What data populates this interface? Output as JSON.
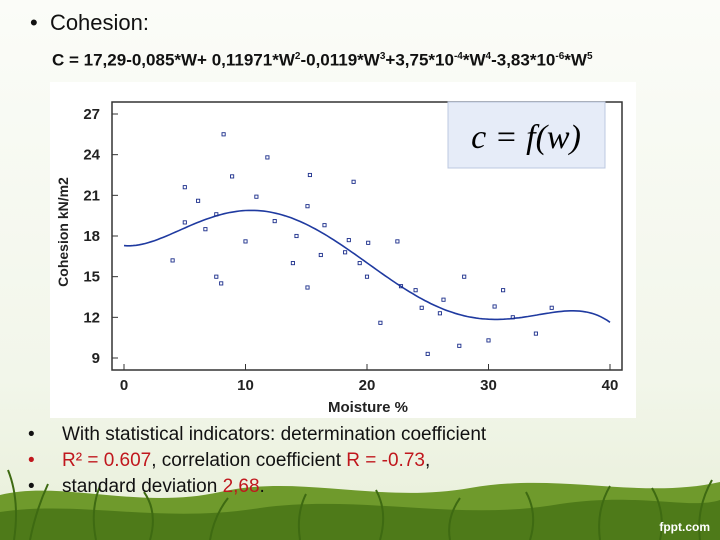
{
  "title": "Cohesion:",
  "formula": {
    "lead": "C = 17,29-0,085*W+ 0,11971*W",
    "e1": "2",
    "p2": "-0,0119*W",
    "e2": "3",
    "p3": "+3,75*10",
    "e3": "-4",
    "p4": "*W",
    "e4": "4",
    "p5": "-3,83*10",
    "e5": "-6",
    "p6": "*W",
    "e6": "5"
  },
  "inset_formula": "c = f(w)",
  "bullets": {
    "b1": "With statistical indicators: determination coefficient",
    "b2_value": "R² = 0.607",
    "b2_mid": ", correlation coefficient ",
    "b2_r": "R = -0.73",
    "b2_end": ",",
    "b3_text": "standard deviation ",
    "b3_value": "2,68",
    "b3_end": "."
  },
  "watermark": "fppt.com",
  "colors": {
    "points": "#1a2d8a",
    "curve": "#1f3aa0",
    "highlight": "#c0171d"
  },
  "chart_data": {
    "type": "scatter",
    "xlabel": "Moisture %",
    "ylabel": "Cohesion kN/m2",
    "xlim": [
      0,
      40
    ],
    "ylim": [
      9,
      27
    ],
    "xticks": [
      0,
      10,
      20,
      30,
      40
    ],
    "yticks": [
      9,
      12,
      15,
      18,
      21,
      24,
      27
    ],
    "points": [
      [
        4.0,
        16.2
      ],
      [
        5.0,
        21.6
      ],
      [
        5.0,
        19.0
      ],
      [
        6.1,
        20.6
      ],
      [
        6.7,
        18.5
      ],
      [
        7.6,
        19.6
      ],
      [
        7.6,
        15.0
      ],
      [
        8.0,
        14.5
      ],
      [
        8.2,
        25.5
      ],
      [
        8.9,
        22.4
      ],
      [
        10.0,
        17.6
      ],
      [
        10.9,
        20.9
      ],
      [
        11.8,
        23.8
      ],
      [
        12.4,
        19.1
      ],
      [
        13.9,
        16.0
      ],
      [
        14.2,
        18.0
      ],
      [
        15.1,
        14.2
      ],
      [
        15.1,
        20.2
      ],
      [
        15.3,
        22.5
      ],
      [
        16.2,
        16.6
      ],
      [
        16.5,
        18.8
      ],
      [
        18.2,
        16.8
      ],
      [
        18.5,
        17.7
      ],
      [
        18.9,
        22.0
      ],
      [
        19.4,
        16.0
      ],
      [
        20.0,
        15.0
      ],
      [
        20.1,
        17.5
      ],
      [
        21.1,
        11.6
      ],
      [
        22.5,
        17.6
      ],
      [
        22.8,
        14.3
      ],
      [
        24.0,
        14.0
      ],
      [
        24.5,
        12.7
      ],
      [
        25.0,
        9.3
      ],
      [
        26.0,
        12.3
      ],
      [
        26.3,
        13.3
      ],
      [
        27.6,
        9.9
      ],
      [
        28.0,
        15.0
      ],
      [
        30.0,
        10.3
      ],
      [
        30.5,
        12.8
      ],
      [
        31.2,
        14.0
      ],
      [
        32.0,
        12.0
      ],
      [
        33.9,
        10.8
      ],
      [
        35.2,
        12.7
      ]
    ],
    "fit_coefficients": [
      17.29,
      -0.085,
      0.11971,
      -0.0119,
      0.000375,
      -3.83e-06
    ],
    "inset": "c = f(w)"
  }
}
